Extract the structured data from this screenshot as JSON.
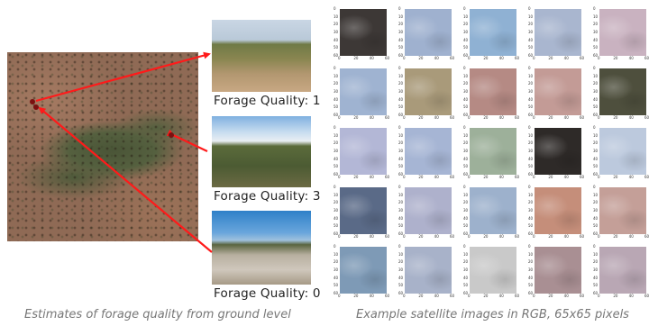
{
  "left_panel": {
    "labels": [
      "Forage Quality: 1",
      "Forage Quality: 3",
      "Forage Quality: 0"
    ],
    "caption": "Estimates of forage quality from ground level"
  },
  "right_panel": {
    "caption": "Example satellite images in RGB, 65x65 pixels",
    "tick_labels_y": [
      "0",
      "10",
      "20",
      "30",
      "40",
      "50",
      "60"
    ],
    "tick_labels_x": [
      "0",
      "20",
      "40",
      "60"
    ],
    "tile_colors": [
      [
        "#3d3836",
        "#9fb1cf",
        "#8fb1d3",
        "#a9b6cf",
        "#c9b2c0"
      ],
      [
        "#9fb3d1",
        "#a99a7a",
        "#b58a84",
        "#c39b96",
        "#4e4f3d"
      ],
      [
        "#b3b7d6",
        "#a6b5d4",
        "#9db09a",
        "#2e2a28",
        "#bcc9dd"
      ],
      [
        "#5a6a87",
        "#aeb1cc",
        "#9db1cc",
        "#c58e7a",
        "#c49f98"
      ],
      [
        "#7e9ab6",
        "#a8b2c9",
        "#c9c9c9",
        "#a98f93",
        "#b9a7b4"
      ]
    ]
  },
  "colors": {
    "arrow": "#ff1a1a",
    "marker": "#7a1010",
    "caption_text": "#777777"
  }
}
